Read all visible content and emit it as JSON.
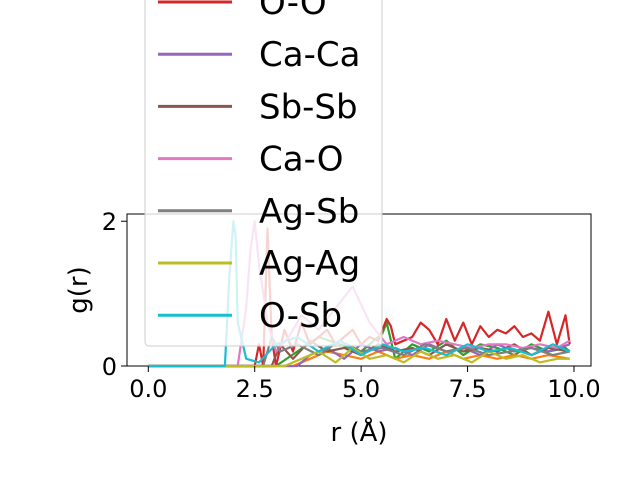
{
  "chart_data": {
    "type": "line",
    "title": "",
    "xlabel": "r (Å)",
    "ylabel": "g(r)",
    "xlim": [
      -0.5,
      10.4
    ],
    "ylim": [
      0,
      2.1
    ],
    "xticks": [
      "0.0",
      "2.5",
      "5.0",
      "7.5",
      "10.0"
    ],
    "yticks": [
      "0",
      "2"
    ],
    "grid": false,
    "legend_position": "upper-left, extending above the plot",
    "series": [
      {
        "name": "O-O",
        "color": "#d62728",
        "x": [
          0,
          1.9,
          2.0,
          2.1,
          2.5,
          2.6,
          2.7,
          2.8,
          2.9,
          3.0,
          3.2,
          3.4,
          3.6,
          3.8,
          4.0,
          4.2,
          4.4,
          4.6,
          4.8,
          5.0,
          5.2,
          5.4,
          5.6,
          5.7,
          5.8,
          6.0,
          6.2,
          6.4,
          6.6,
          6.8,
          7.0,
          7.2,
          7.4,
          7.6,
          7.8,
          8.0,
          8.2,
          8.4,
          8.6,
          8.8,
          9.0,
          9.2,
          9.4,
          9.6,
          9.8,
          9.9
        ],
        "y": [
          0,
          0,
          0,
          0,
          0,
          0.3,
          0,
          1.9,
          0.4,
          0,
          0.5,
          0.2,
          0.6,
          0.3,
          0.4,
          0.5,
          0.3,
          0.4,
          0.5,
          0.3,
          0.4,
          0.35,
          0.65,
          0.55,
          0.3,
          0.35,
          0.4,
          0.6,
          0.5,
          0.3,
          0.65,
          0.35,
          0.6,
          0.3,
          0.55,
          0.4,
          0.5,
          0.45,
          0.55,
          0.4,
          0.45,
          0.35,
          0.75,
          0.3,
          0.7,
          0.3
        ]
      },
      {
        "name": "Ca-Ca",
        "color": "#9467bd",
        "x": [
          0,
          3.5,
          3.8,
          4.2,
          4.6,
          5.0,
          5.4,
          5.8,
          6.2,
          6.6,
          7.0,
          7.4,
          7.8,
          8.2,
          8.6,
          9.0,
          9.4,
          9.9
        ],
        "y": [
          0,
          0,
          0.15,
          0.25,
          0.1,
          0.3,
          0.2,
          0.25,
          0.15,
          0.3,
          0.2,
          0.25,
          0.15,
          0.3,
          0.2,
          0.25,
          0.2,
          0.3
        ]
      },
      {
        "name": "Sb-Sb",
        "color": "#8c564b",
        "x": [
          0,
          2.9,
          3.1,
          3.4,
          3.8,
          4.2,
          4.6,
          5.0,
          5.4,
          5.8,
          6.2,
          6.6,
          7.0,
          7.4,
          7.8,
          8.2,
          8.6,
          9.0,
          9.4,
          9.9
        ],
        "y": [
          0,
          0,
          0.3,
          0.1,
          0.35,
          0.2,
          0.25,
          0.15,
          0.3,
          0.2,
          0.25,
          0.15,
          0.3,
          0.2,
          0.25,
          0.2,
          0.3,
          0.15,
          0.25,
          0.2
        ]
      },
      {
        "name": "Ca-O",
        "color": "#e377c2",
        "x": [
          0,
          2.1,
          2.3,
          2.4,
          2.5,
          2.6,
          2.8,
          3.0,
          3.3,
          3.6,
          4.0,
          4.4,
          4.8,
          5.2,
          5.6,
          6.0,
          6.4,
          6.8,
          7.2,
          7.6,
          8.0,
          8.4,
          8.8,
          9.2,
          9.6,
          9.9
        ],
        "y": [
          0,
          0,
          0.8,
          1.6,
          2.0,
          1.4,
          0.6,
          0.2,
          0.4,
          0.7,
          0.5,
          0.8,
          1.1,
          0.6,
          0.3,
          0.4,
          0.3,
          0.35,
          0.3,
          0.25,
          0.3,
          0.3,
          0.25,
          0.3,
          0.25,
          0.35
        ]
      },
      {
        "name": "Ag-Sb",
        "color": "#7f7f7f",
        "x": [
          0,
          2.7,
          2.9,
          3.1,
          3.5,
          4.0,
          4.5,
          5.0,
          5.5,
          6.0,
          6.5,
          7.0,
          7.5,
          8.0,
          8.5,
          9.0,
          9.5,
          9.9
        ],
        "y": [
          0,
          0,
          0.4,
          0.2,
          0.3,
          0.15,
          0.35,
          0.2,
          0.25,
          0.15,
          0.3,
          0.2,
          0.25,
          0.15,
          0.2,
          0.25,
          0.15,
          0.2
        ]
      },
      {
        "name": "Ag-Ag",
        "color": "#bcbd22",
        "x": [
          0,
          3.2,
          3.6,
          4.0,
          4.4,
          4.8,
          5.2,
          5.6,
          6.0,
          6.4,
          6.8,
          7.2,
          7.6,
          8.0,
          8.4,
          8.8,
          9.2,
          9.6,
          9.9
        ],
        "y": [
          0,
          0,
          0.1,
          0.2,
          0.05,
          0.25,
          0.1,
          0.15,
          0.05,
          0.2,
          0.1,
          0.15,
          0.05,
          0.2,
          0.1,
          0.15,
          0.05,
          0.1,
          0.1
        ]
      },
      {
        "name": "O-Sb",
        "color": "#17becf",
        "x": [
          0,
          1.8,
          1.9,
          2.0,
          2.05,
          2.1,
          2.3,
          2.6,
          3.0,
          3.5,
          4.0,
          4.5,
          5.0,
          5.5,
          6.0,
          6.5,
          7.0,
          7.5,
          8.0,
          8.5,
          9.0,
          9.5,
          9.9
        ],
        "y": [
          0,
          0,
          1.2,
          2.0,
          1.8,
          0.6,
          0.1,
          0.05,
          0.3,
          0.4,
          0.2,
          0.35,
          0.15,
          0.3,
          0.2,
          0.25,
          0.15,
          0.3,
          0.2,
          0.25,
          0.15,
          0.3,
          0.2
        ]
      }
    ],
    "extra_series": [
      {
        "color": "#2ca02c",
        "x": [
          0,
          3.0,
          3.5,
          4.0,
          4.5,
          5.0,
          5.5,
          5.6,
          5.8,
          6.2,
          6.6,
          7.0,
          7.4,
          7.8,
          8.2,
          8.6,
          9.0,
          9.4,
          9.8,
          9.9
        ],
        "y": [
          0,
          0,
          0.2,
          0.4,
          0.3,
          0.2,
          0.45,
          0.6,
          0.1,
          0.3,
          0.2,
          0.35,
          0.15,
          0.3,
          0.25,
          0.15,
          0.3,
          0.2,
          0.25,
          0.2
        ]
      },
      {
        "color": "#ff7f0e",
        "x": [
          0,
          3.4,
          3.8,
          4.2,
          4.6,
          5.0,
          5.4,
          5.8,
          6.2,
          6.6,
          7.0,
          7.4,
          7.8,
          8.2,
          8.6,
          9.0,
          9.4,
          9.9
        ],
        "y": [
          0,
          0,
          0.1,
          0.2,
          0.15,
          0.1,
          0.2,
          0.1,
          0.15,
          0.1,
          0.2,
          0.1,
          0.15,
          0.1,
          0.15,
          0.1,
          0.15,
          0.1
        ]
      }
    ]
  }
}
